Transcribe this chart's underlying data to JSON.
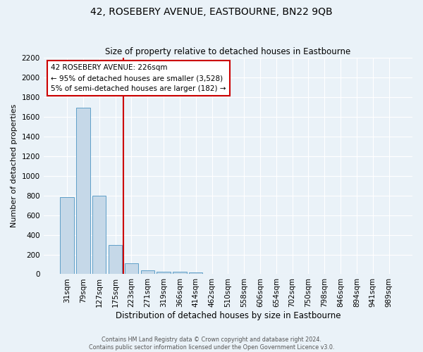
{
  "title": "42, ROSEBERY AVENUE, EASTBOURNE, BN22 9QB",
  "subtitle": "Size of property relative to detached houses in Eastbourne",
  "xlabel": "Distribution of detached houses by size in Eastbourne",
  "ylabel": "Number of detached properties",
  "bar_labels": [
    "31sqm",
    "79sqm",
    "127sqm",
    "175sqm",
    "223sqm",
    "271sqm",
    "319sqm",
    "366sqm",
    "414sqm",
    "462sqm",
    "510sqm",
    "558sqm",
    "606sqm",
    "654sqm",
    "702sqm",
    "750sqm",
    "798sqm",
    "846sqm",
    "894sqm",
    "941sqm",
    "989sqm"
  ],
  "bar_values": [
    780,
    1690,
    795,
    300,
    110,
    40,
    25,
    25,
    20,
    0,
    0,
    0,
    0,
    0,
    0,
    0,
    0,
    0,
    0,
    0,
    0
  ],
  "bar_color": "#c5d8e8",
  "bar_edgecolor": "#5f9fc8",
  "vline_x_index": 3.5,
  "annotation_title": "42 ROSEBERY AVENUE: 226sqm",
  "annotation_line1": "← 95% of detached houses are smaller (3,528)",
  "annotation_line2": "5% of semi-detached houses are larger (182) →",
  "annotation_box_color": "#ffffff",
  "annotation_box_edgecolor": "#cc0000",
  "vline_color": "#cc0000",
  "ylim": [
    0,
    2200
  ],
  "yticks": [
    0,
    200,
    400,
    600,
    800,
    1000,
    1200,
    1400,
    1600,
    1800,
    2000,
    2200
  ],
  "footer1": "Contains HM Land Registry data © Crown copyright and database right 2024.",
  "footer2": "Contains public sector information licensed under the Open Government Licence v3.0.",
  "bg_color": "#eaf2f8",
  "plot_bg_color": "#eaf2f8",
  "title_fontsize": 10,
  "subtitle_fontsize": 8.5,
  "ylabel_fontsize": 8,
  "xlabel_fontsize": 8.5,
  "tick_fontsize": 7.5,
  "footer_fontsize": 5.8
}
